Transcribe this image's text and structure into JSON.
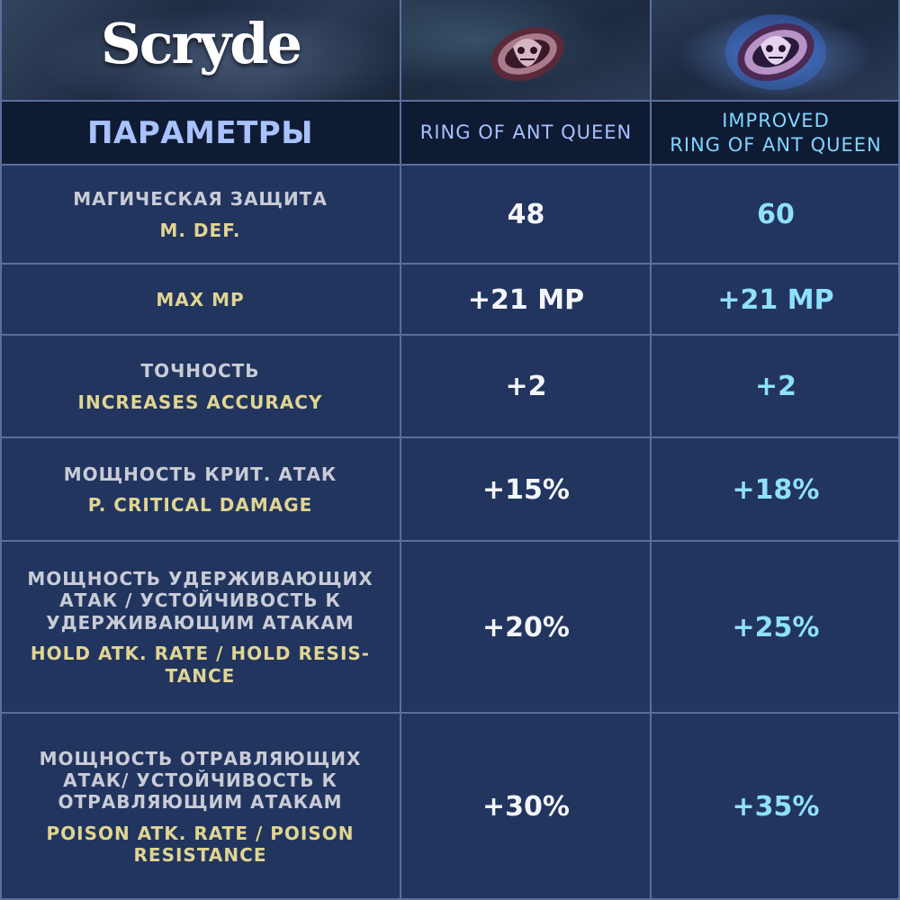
{
  "logo": {
    "text": "Scryde"
  },
  "header": {
    "params_label": "ПАРАМЕТРЫ",
    "ring_label": "RING OF ANT QUEEN",
    "improved_line1": "IMPROVED",
    "improved_line2": "RING OF ANT QUEEN"
  },
  "icons": {
    "ring": "ring-icon",
    "improved_ring": "glowing-ring-icon"
  },
  "colors": {
    "value_normal": "#f3f5fa",
    "value_improved": "#8fe0ff",
    "english_label": "#e0d592"
  },
  "rows": [
    {
      "ru": [
        "МАГИЧЕСКАЯ ЗАЩИТА"
      ],
      "en": [
        "M. DEF."
      ],
      "ring": "48",
      "improved": "60"
    },
    {
      "ru": [],
      "en": [
        "MAX MP"
      ],
      "ring": "+21 MP",
      "improved": "+21 MP"
    },
    {
      "ru": [
        "ТОЧНОСТЬ"
      ],
      "en": [
        "INCREASES ACCURACY"
      ],
      "ring": "+2",
      "improved": "+2"
    },
    {
      "ru": [
        "МОЩНОСТЬ КРИТ. АТАК"
      ],
      "en": [
        "P. CRITICAL DAMAGE"
      ],
      "ring": "+15%",
      "improved": "+18%"
    },
    {
      "ru": [
        "МОЩНОСТЬ УДЕРЖИВАЮЩИХ",
        "АТАК / УСТОЙЧИВОСТЬ К",
        "УДЕРЖИВАЮЩИМ АТАКАМ"
      ],
      "en": [
        "HOLD ATK. RATE / HOLD RESIS-",
        "TANCE"
      ],
      "ring": "+20%",
      "improved": "+25%"
    },
    {
      "ru": [
        "МОЩНОСТЬ ОТРАВЛЯЮЩИХ",
        "АТАК/ УСТОЙЧИВОСТЬ К",
        "ОТРАВЛЯЮЩИМ АТАКАМ"
      ],
      "en": [
        "POISON ATK. RATE / POISON",
        "RESISTANCE"
      ],
      "ring": "+30%",
      "improved": "+35%"
    }
  ]
}
